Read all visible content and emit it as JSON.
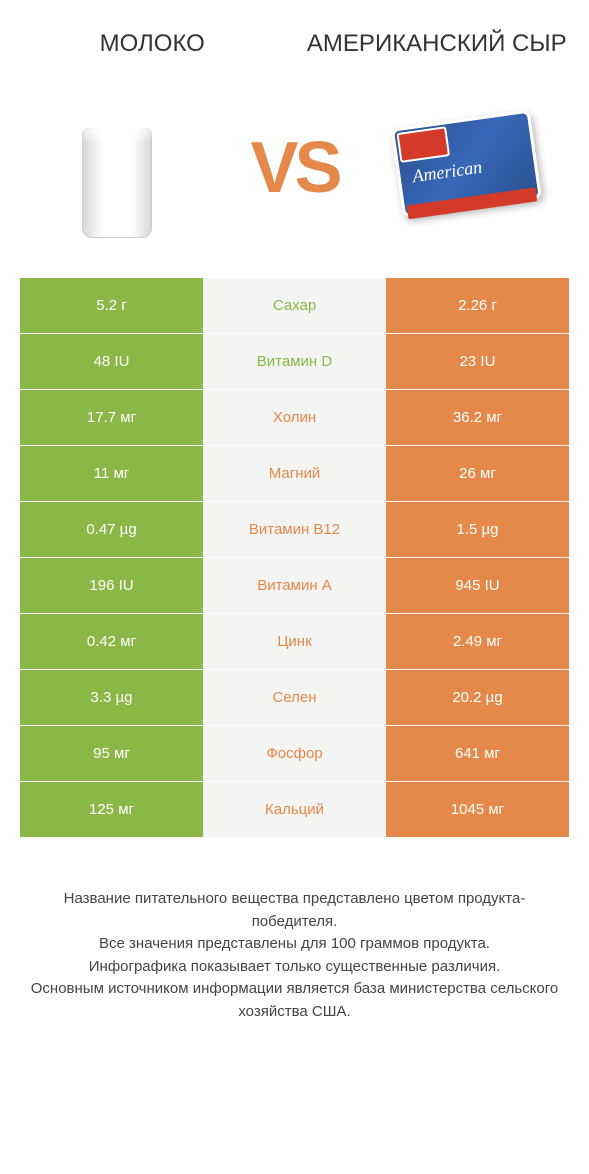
{
  "header": {
    "left_title": "МОЛОКО",
    "right_title": "АМЕРИКАНСКИЙ СЫР",
    "vs": "VS",
    "cheese_brand": "American"
  },
  "colors": {
    "left_cell": "#8bb746",
    "right_cell": "#e5894a",
    "mid_bg": "#f4f4f2",
    "vs_color": "#e5894a"
  },
  "rows": [
    {
      "left": "5.2 г",
      "mid": "Сахар",
      "right": "2.26 г",
      "winner": "left"
    },
    {
      "left": "48 IU",
      "mid": "Витамин D",
      "right": "23 IU",
      "winner": "left"
    },
    {
      "left": "17.7 мг",
      "mid": "Холин",
      "right": "36.2 мг",
      "winner": "right"
    },
    {
      "left": "11 мг",
      "mid": "Магний",
      "right": "26 мг",
      "winner": "right"
    },
    {
      "left": "0.47 µg",
      "mid": "Витамин B12",
      "right": "1.5 µg",
      "winner": "right"
    },
    {
      "left": "196 IU",
      "mid": "Витамин A",
      "right": "945 IU",
      "winner": "right"
    },
    {
      "left": "0.42 мг",
      "mid": "Цинк",
      "right": "2.49 мг",
      "winner": "right"
    },
    {
      "left": "3.3 µg",
      "mid": "Селен",
      "right": "20.2 µg",
      "winner": "right"
    },
    {
      "left": "95 мг",
      "mid": "Фосфор",
      "right": "641 мг",
      "winner": "right"
    },
    {
      "left": "125 мг",
      "mid": "Кальций",
      "right": "1045 мг",
      "winner": "right"
    }
  ],
  "footer": {
    "line1": "Название питательного вещества представлено цветом продукта-победителя.",
    "line2": "Все значения представлены для 100 граммов продукта.",
    "line3": "Инфографика показывает только существенные различия.",
    "line4": "Основным источником информации является база министерства сельского хозяйства США."
  }
}
